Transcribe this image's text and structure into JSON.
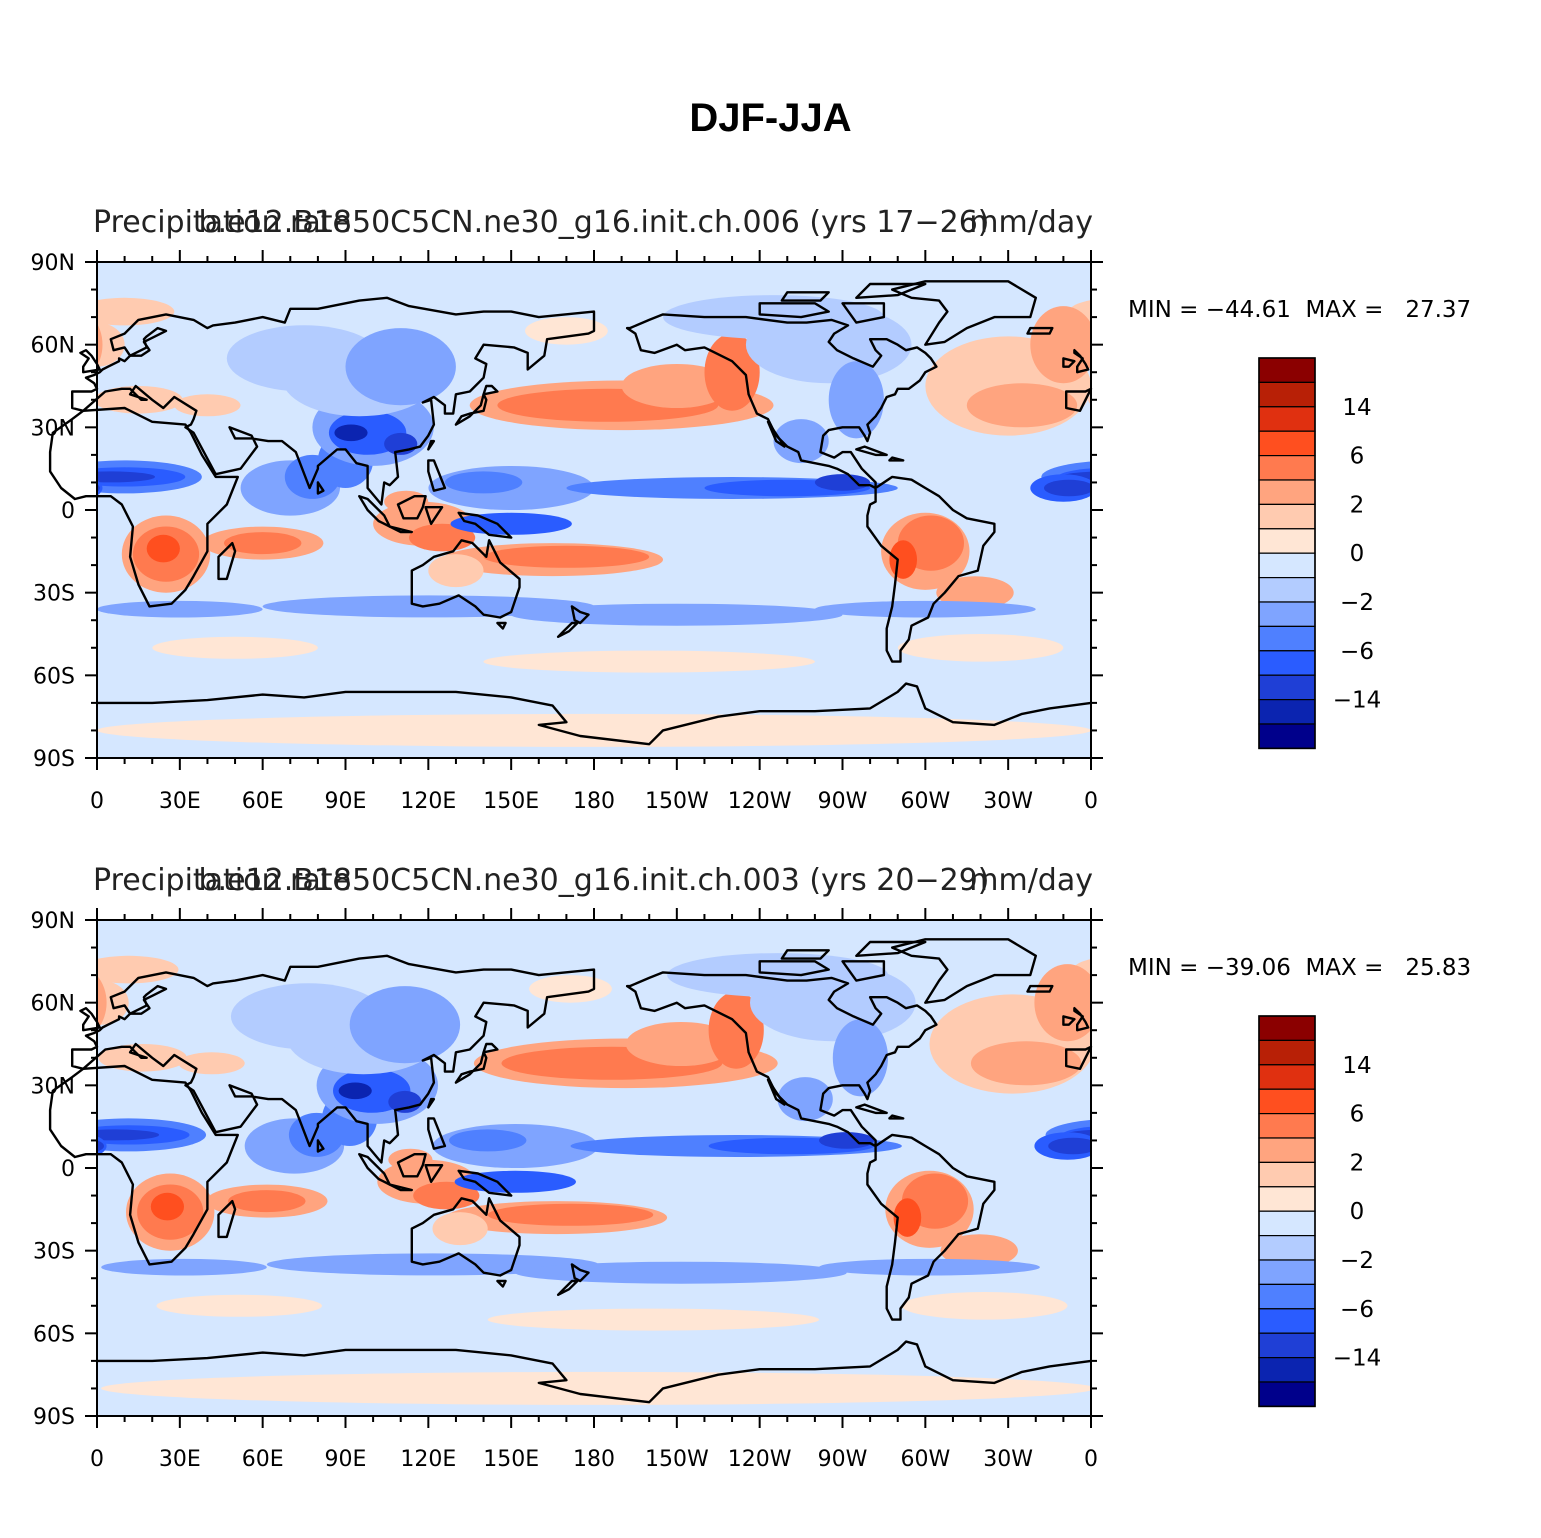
{
  "title": "DJF-JJA",
  "colors": [
    "#00008b",
    "#0b24b0",
    "#1f3fd6",
    "#2a5cff",
    "#4f80ff",
    "#7fa4ff",
    "#b3ccff",
    "#d5e7ff",
    "#ffe6d5",
    "#ffcbb0",
    "#ffa47f",
    "#ff7a4f",
    "#ff4f1f",
    "#e03010",
    "#b82006",
    "#8b0000"
  ],
  "colorbar_labels": [
    "14",
    "6",
    "2",
    "0",
    "−2",
    "−6",
    "−14"
  ],
  "x_ticks": [
    "0",
    "30E",
    "60E",
    "90E",
    "120E",
    "150E",
    "180",
    "150W",
    "120W",
    "90W",
    "60W",
    "30W",
    "0"
  ],
  "y_ticks": [
    "90N",
    "60N",
    "30N",
    "0",
    "30S",
    "60S",
    "90S"
  ],
  "panels": [
    {
      "left_title": "Precipitation rate",
      "center_title": "b.e12.B1850C5CN.ne30_g16.init.ch.006 (yrs 17−26)",
      "right_title": "mm/day",
      "minmax": "MIN = −44.61  MAX =   27.37"
    },
    {
      "left_title": "Precipitation rate",
      "center_title": "b.e12.B1850C5CN.ne30_g16.init.ch.003 (yrs 20−29)",
      "right_title": "mm/day",
      "minmax": "MIN = −39.06  MAX =   25.83"
    }
  ]
}
